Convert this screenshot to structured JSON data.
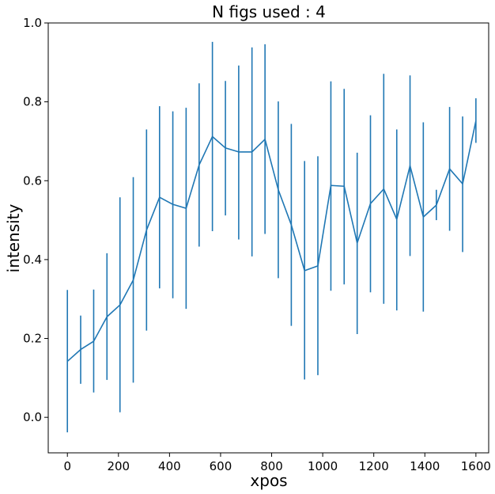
{
  "chart_data": {
    "type": "line",
    "title": "N figs used : 4",
    "xlabel": "xpos",
    "ylabel": "intensity",
    "xlim": [
      -75,
      1650
    ],
    "ylim": [
      -0.09,
      1.0
    ],
    "xticks": [
      0,
      200,
      400,
      600,
      800,
      1000,
      1200,
      1400,
      1600
    ],
    "yticks": [
      0.0,
      0.2,
      0.4,
      0.6,
      0.8,
      1.0
    ],
    "xtick_labels": [
      "0",
      "200",
      "400",
      "600",
      "800",
      "1000",
      "1200",
      "1400",
      "1600"
    ],
    "ytick_labels": [
      "0.0",
      "0.2",
      "0.4",
      "0.6",
      "0.8",
      "1.0"
    ],
    "grid": false,
    "color": "#1f77b4",
    "series": [
      {
        "x": [
          0,
          52,
          103,
          155,
          206,
          258,
          310,
          361,
          413,
          465,
          516,
          568,
          619,
          671,
          723,
          774,
          826,
          877,
          929,
          981,
          1032,
          1084,
          1135,
          1187,
          1239,
          1290,
          1342,
          1394,
          1445,
          1497,
          1548,
          1600
        ],
        "y": [
          0.142,
          0.172,
          0.193,
          0.255,
          0.285,
          0.348,
          0.475,
          0.558,
          0.54,
          0.53,
          0.64,
          0.712,
          0.683,
          0.673,
          0.673,
          0.705,
          0.577,
          0.488,
          0.372,
          0.384,
          0.588,
          0.586,
          0.442,
          0.542,
          0.579,
          0.502,
          0.638,
          0.508,
          0.538,
          0.63,
          0.592,
          0.752
        ],
        "y_lower": [
          -0.038,
          0.085,
          0.063,
          0.095,
          0.013,
          0.088,
          0.22,
          0.327,
          0.302,
          0.275,
          0.433,
          0.472,
          0.512,
          0.451,
          0.408,
          0.465,
          0.353,
          0.232,
          0.096,
          0.107,
          0.321,
          0.337,
          0.211,
          0.317,
          0.288,
          0.271,
          0.409,
          0.268,
          0.5,
          0.473,
          0.419,
          0.696
        ],
        "y_upper": [
          0.323,
          0.258,
          0.324,
          0.416,
          0.558,
          0.609,
          0.73,
          0.789,
          0.776,
          0.785,
          0.847,
          0.952,
          0.853,
          0.892,
          0.938,
          0.946,
          0.801,
          0.744,
          0.65,
          0.662,
          0.852,
          0.833,
          0.671,
          0.766,
          0.871,
          0.73,
          0.867,
          0.748,
          0.577,
          0.787,
          0.763,
          0.809
        ]
      }
    ]
  }
}
